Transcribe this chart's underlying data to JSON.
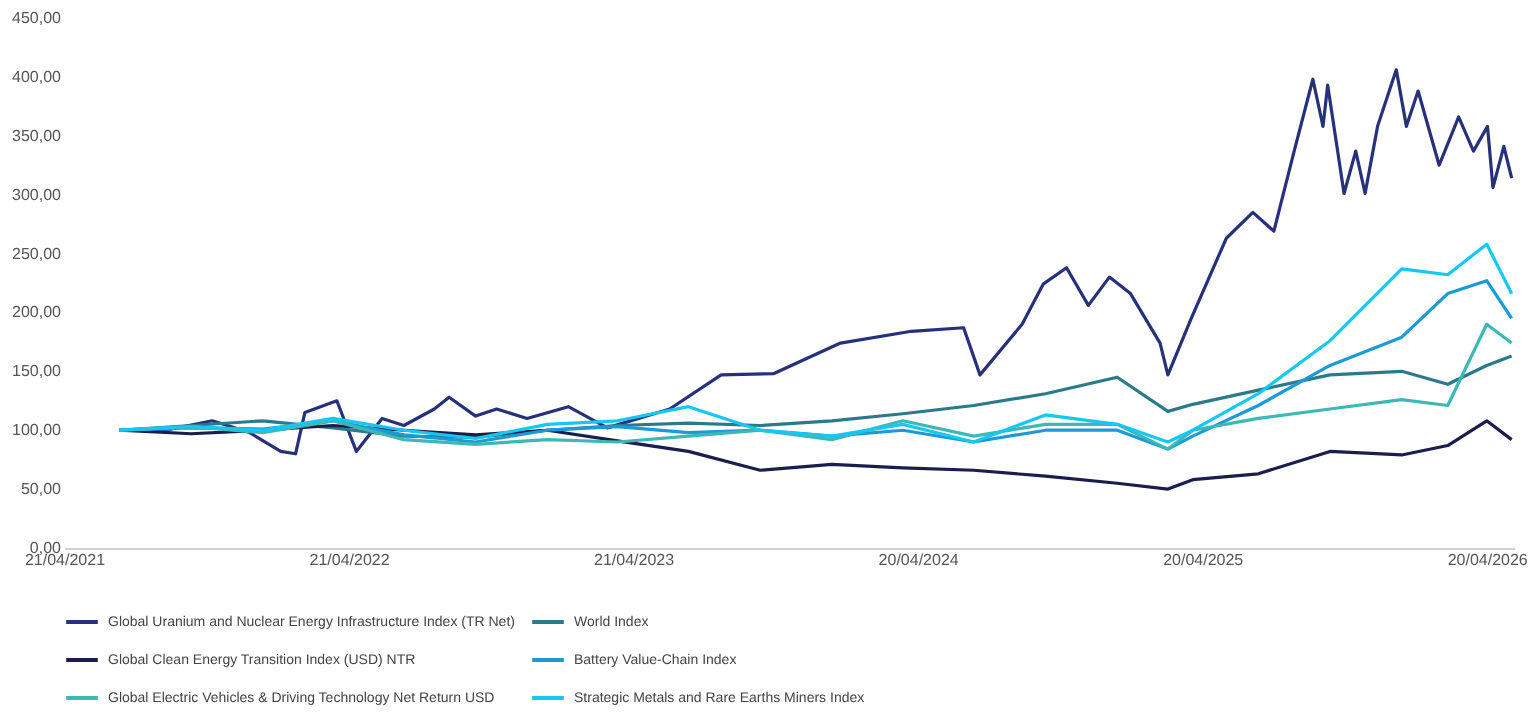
{
  "chart_data": {
    "type": "line",
    "x": [
      "2021-07-01",
      "2021-10-01",
      "2022-01-01",
      "2022-04-01",
      "2022-07-01",
      "2022-10-01",
      "2023-01-01",
      "2023-04-01",
      "2023-07-01",
      "2023-10-01",
      "2024-01-01",
      "2024-04-01",
      "2024-07-01",
      "2024-10-01",
      "2025-01-01",
      "2025-03-07",
      "2025-04-08",
      "2025-07-01",
      "2025-10-01",
      "2026-01-01",
      "2026-03-01",
      "2026-04-20",
      "2026-05-22"
    ],
    "series": [
      {
        "name": "Global Uranium and Nuclear Energy Infrastructure Index (TR Net)",
        "color": "#27307a",
        "x": [
          "2021-07-01",
          "2021-09-06",
          "2021-10-28",
          "2021-12-15",
          "2022-01-24",
          "2022-02-12",
          "2022-02-24",
          "2022-04-06",
          "2022-05-01",
          "2022-06-03",
          "2022-07-01",
          "2022-08-09",
          "2022-08-28",
          "2022-10-01",
          "2022-10-28",
          "2022-12-06",
          "2023-01-28",
          "2023-03-19",
          "2023-06-07",
          "2023-08-12",
          "2023-10-18",
          "2024-01-12",
          "2024-04-12",
          "2024-06-18",
          "2024-07-09",
          "2024-09-01",
          "2024-09-28",
          "2024-10-28",
          "2024-11-25",
          "2024-12-22",
          "2025-01-18",
          "2025-02-25",
          "2025-03-07",
          "2025-04-06",
          "2025-05-21",
          "2025-06-24",
          "2025-07-21",
          "2025-08-16",
          "2025-09-09",
          "2025-09-22",
          "2025-09-28",
          "2025-10-19",
          "2025-11-03",
          "2025-11-15",
          "2025-12-01",
          "2025-12-25",
          "2026-01-07",
          "2026-01-22",
          "2026-02-18",
          "2026-03-15",
          "2026-04-03",
          "2026-04-21",
          "2026-04-28",
          "2026-05-12",
          "2026-05-22"
        ],
        "values": [
          100,
          101,
          108,
          98,
          82,
          80,
          115,
          125,
          82,
          110,
          104,
          118,
          128,
          112,
          118,
          110,
          120,
          102,
          118,
          147,
          148,
          174,
          184,
          187,
          147,
          190,
          224,
          238,
          206,
          230,
          216,
          174,
          147,
          195,
          263,
          285,
          269,
          337,
          398,
          358,
          393,
          301,
          337,
          301,
          358,
          406,
          358,
          388,
          325,
          366,
          337,
          358,
          306,
          341,
          314
        ]
      },
      {
        "name": "World Index",
        "color": "#2b7a8c",
        "values": [
          100,
          104,
          108,
          102,
          95,
          94,
          100,
          104,
          106,
          104,
          108,
          114,
          121,
          131,
          145,
          116,
          122,
          134,
          147,
          150,
          139,
          155,
          163
        ]
      },
      {
        "name": "Global Clean Energy Transition Index (USD) NTR",
        "color": "#1b1d4f",
        "values": [
          100,
          97,
          100,
          104,
          100,
          96,
          100,
          91,
          82,
          66,
          71,
          68,
          66,
          61,
          55,
          50,
          58,
          63,
          82,
          79,
          87,
          108,
          92
        ]
      },
      {
        "name": "Battery Value-Chain Index",
        "color": "#1a9bd7",
        "values": [
          100,
          102,
          101,
          108,
          96,
          90,
          100,
          103,
          98,
          100,
          95,
          100,
          90,
          100,
          100,
          84,
          95,
          121,
          155,
          179,
          216,
          227,
          195
        ]
      },
      {
        "name": "Global Electric Vehicles & Driving Technology Net Return USD",
        "color": "#3cb9b6",
        "values": [
          100,
          103,
          98,
          108,
          92,
          88,
          92,
          90,
          95,
          100,
          92,
          108,
          95,
          105,
          105,
          84,
          100,
          110,
          118,
          126,
          121,
          190,
          174
        ]
      },
      {
        "name": "Strategic Metals and Rare Earths Miners Index",
        "color": "#14c8f2",
        "values": [
          100,
          103,
          100,
          110,
          100,
          93,
          105,
          108,
          120,
          100,
          95,
          105,
          90,
          113,
          105,
          90,
          100,
          131,
          176,
          237,
          232,
          258,
          216
        ]
      }
    ],
    "xlim": [
      "2021-04-21",
      "2026-05-25"
    ],
    "xticks": [
      {
        "value": "2021-04-21",
        "label": "21/04/2021"
      },
      {
        "value": "2022-04-21",
        "label": "21/04/2022"
      },
      {
        "value": "2023-04-21",
        "label": "21/04/2023"
      },
      {
        "value": "2024-04-20",
        "label": "20/04/2024"
      },
      {
        "value": "2025-04-20",
        "label": "20/04/2025"
      },
      {
        "value": "2026-04-20",
        "label": "20/04/2026"
      }
    ],
    "ylim": [
      0,
      450
    ],
    "yticks": [
      {
        "value": 0,
        "label": "0,00"
      },
      {
        "value": 50,
        "label": "50,00"
      },
      {
        "value": 100,
        "label": "100,00"
      },
      {
        "value": 150,
        "label": "150,00"
      },
      {
        "value": 200,
        "label": "200,00"
      },
      {
        "value": 250,
        "label": "250,00"
      },
      {
        "value": 300,
        "label": "300,00"
      },
      {
        "value": 350,
        "label": "350,00"
      },
      {
        "value": 400,
        "label": "400,00"
      },
      {
        "value": 450,
        "label": "450,00"
      }
    ],
    "grid": false,
    "legend": "bottom"
  }
}
